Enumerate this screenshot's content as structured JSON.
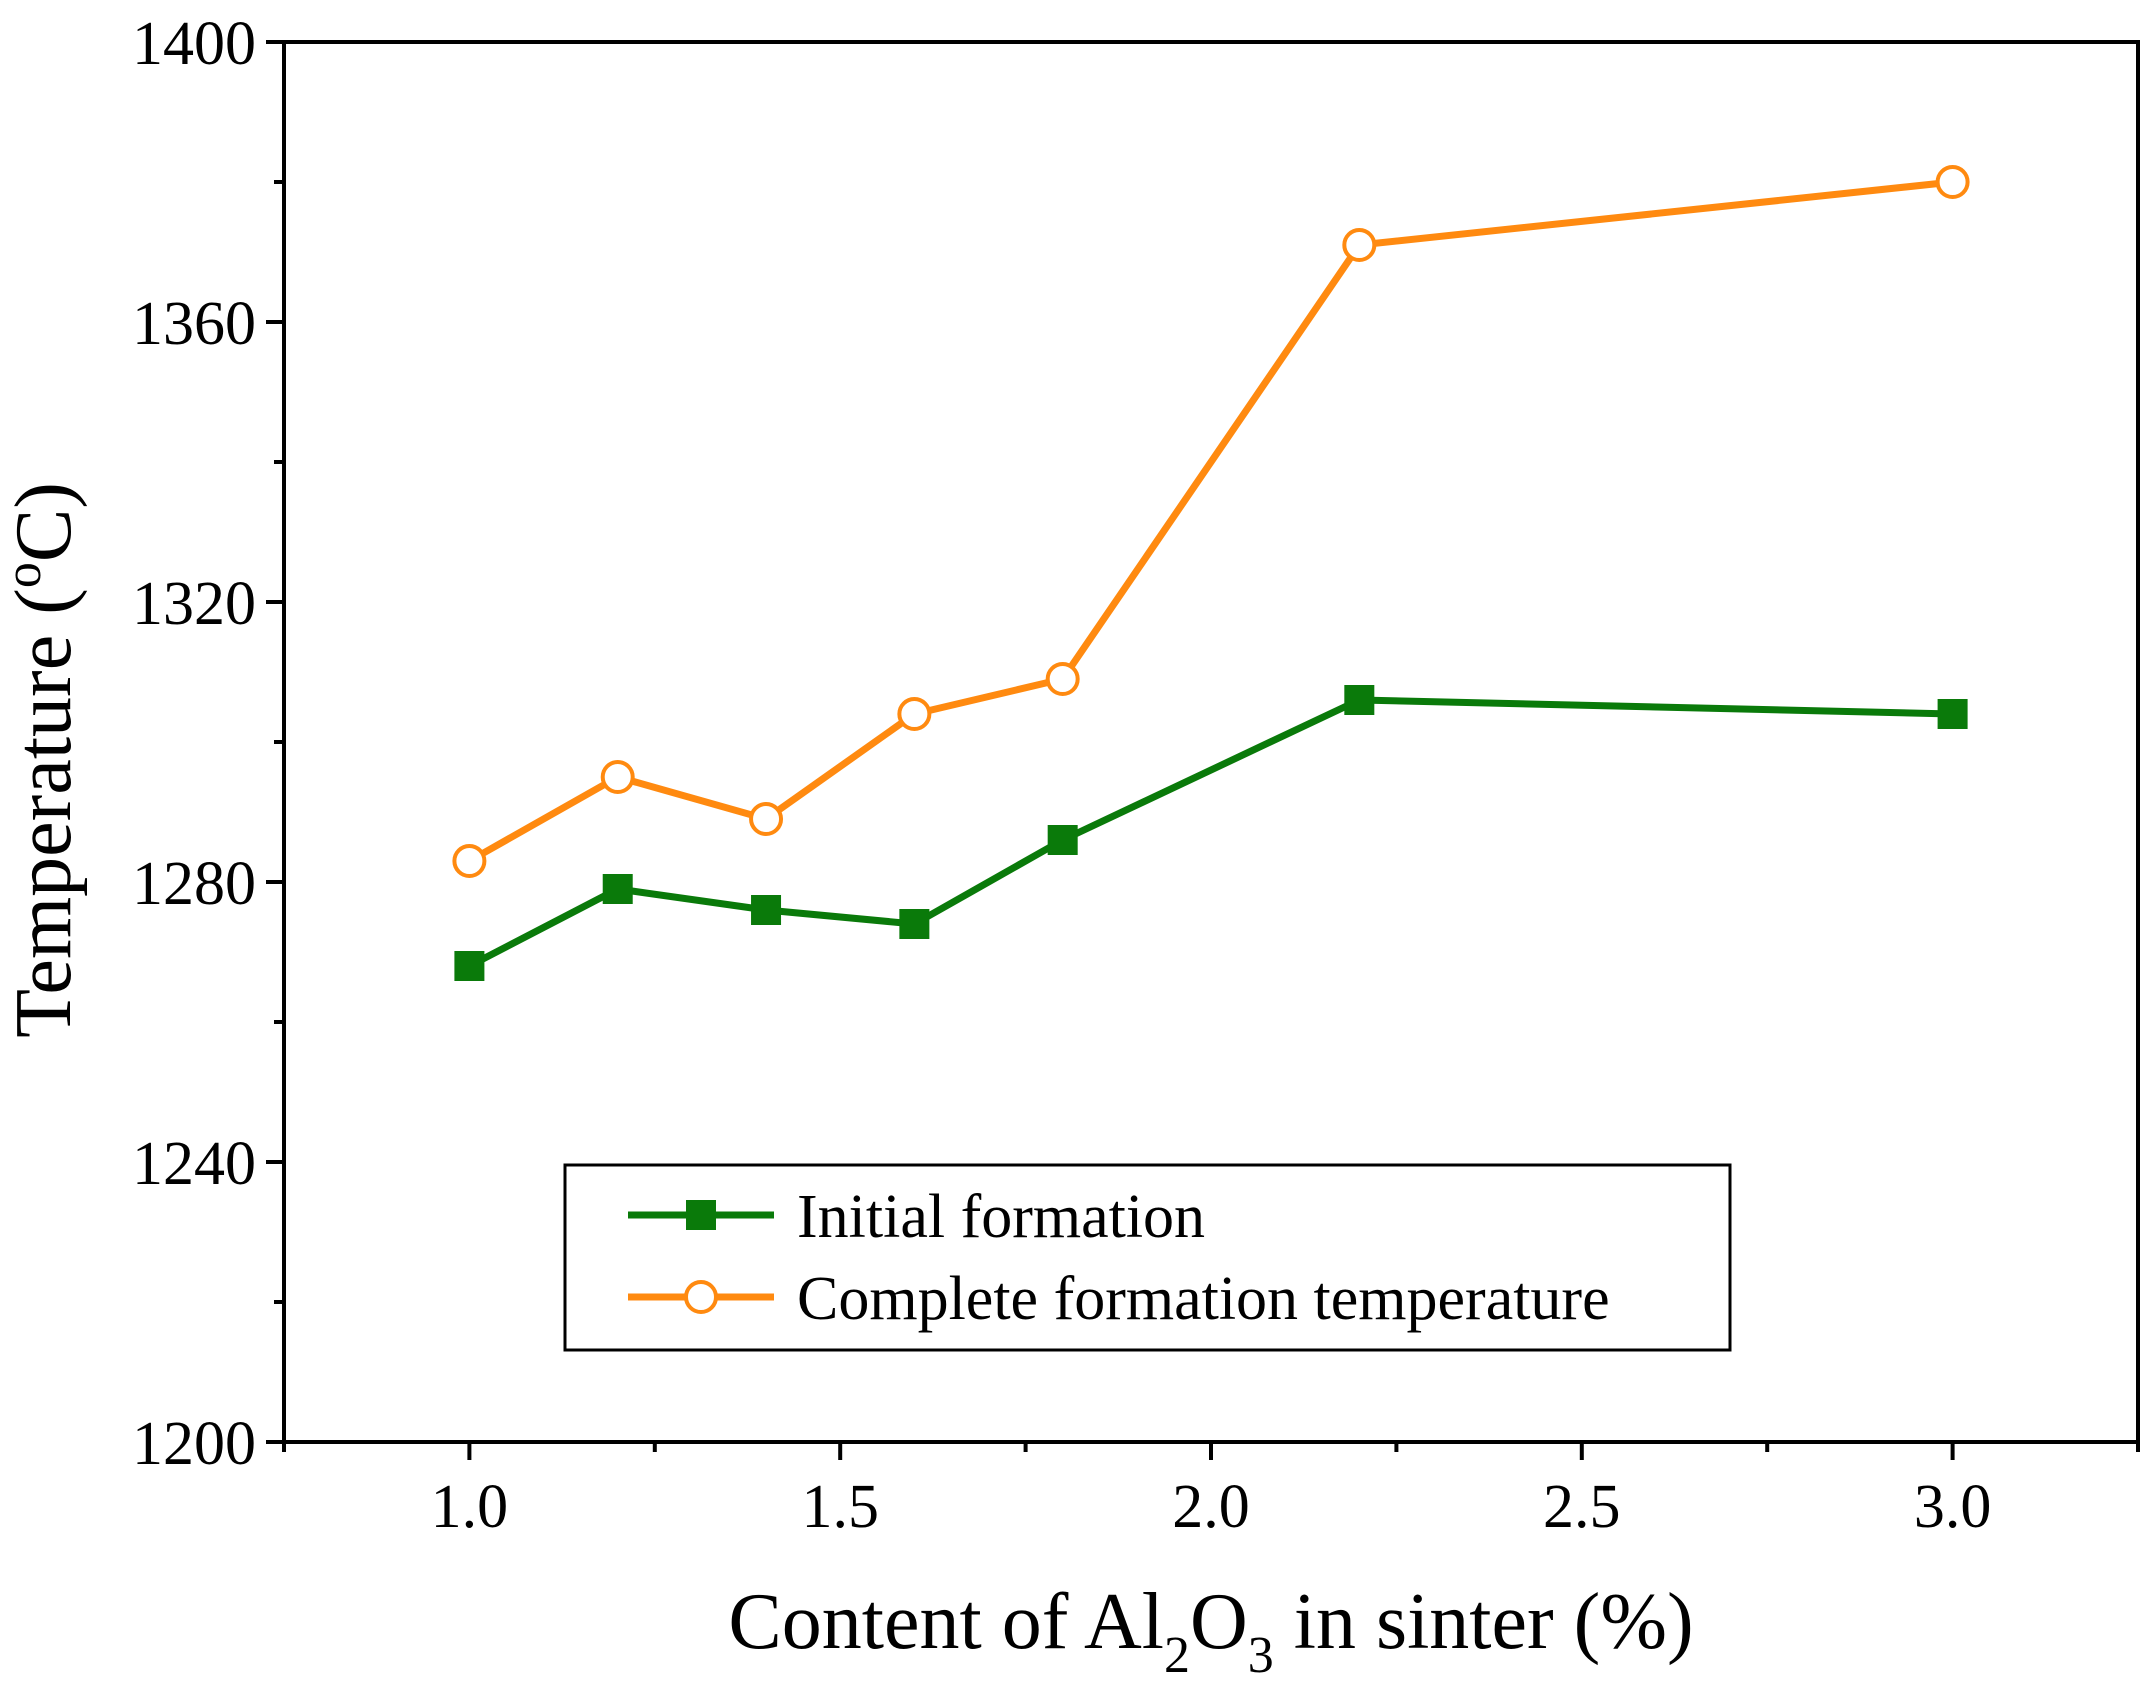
{
  "chart_data": {
    "type": "line",
    "xlabel": {
      "prefix": "Content of Al",
      "sub1": "2",
      "mid": "O",
      "sub2": "3",
      "suffix": " in sinter (%)"
    },
    "ylabel": {
      "prefix": "Temperature (",
      "sup": "o",
      "suffix": "C)"
    },
    "xlim": [
      0.75,
      3.25
    ],
    "ylim": [
      1200,
      1400
    ],
    "x_ticks": [
      "1.0",
      "1.5",
      "2.0",
      "2.5",
      "3.0"
    ],
    "y_ticks": [
      "1200",
      "1240",
      "1280",
      "1320",
      "1360",
      "1400"
    ],
    "legend_position": "bottom-center",
    "x": [
      1.0,
      1.2,
      1.4,
      1.6,
      1.8,
      2.2,
      3.0
    ],
    "series": [
      {
        "name": "Initial formation",
        "color": "#0a7a0a",
        "marker": "filled-square",
        "values": [
          1268,
          1279,
          1276,
          1274,
          1286,
          1306,
          1304
        ]
      },
      {
        "name": "Complete formation temperature",
        "color": "#ff8a10",
        "marker": "open-circle",
        "values": [
          1283,
          1295,
          1289,
          1304,
          1309,
          1371,
          1380
        ]
      }
    ]
  }
}
